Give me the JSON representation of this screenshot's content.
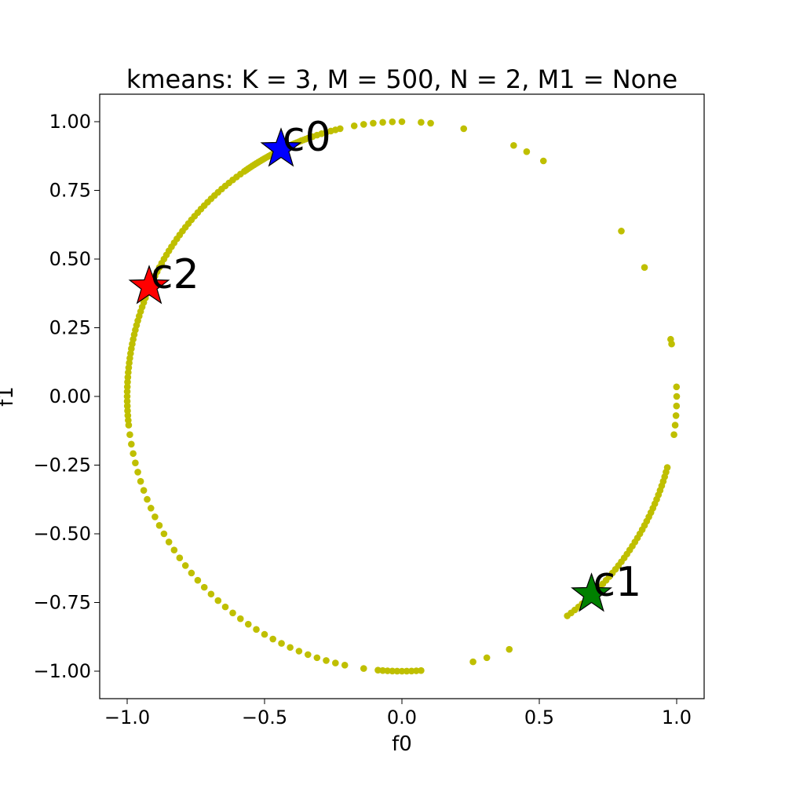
{
  "chart_data": {
    "type": "scatter",
    "title": "kmeans: K = 3, M = 500, N = 2, M1 = None",
    "xlabel": "f0",
    "ylabel": "f1",
    "xlim": [
      -1.1,
      1.1
    ],
    "ylim": [
      -1.1,
      1.1
    ],
    "grid": false,
    "x_ticks": [
      -1.0,
      -0.5,
      0.0,
      0.5,
      1.0
    ],
    "x_tick_labels": [
      "−1.0",
      "−0.5",
      "0.0",
      "0.5",
      "1.0"
    ],
    "y_ticks": [
      1.0,
      0.75,
      0.5,
      0.25,
      0.0,
      -0.25,
      -0.5,
      -0.75,
      -1.0
    ],
    "y_tick_labels": [
      "1.00",
      "0.75",
      "0.50",
      "0.25",
      "0.00",
      "−0.25",
      "−0.50",
      "−0.75",
      "−1.00"
    ],
    "point_color": "#bfbf00",
    "points_angles_deg": [
      103,
      104,
      105,
      106,
      107,
      108,
      109,
      110,
      110.5,
      111,
      111.5,
      112,
      112.5,
      113,
      113.5,
      114,
      114.5,
      115,
      115.5,
      116,
      116.5,
      117,
      117.5,
      118,
      118.5,
      119,
      119.5,
      120,
      120.5,
      121,
      121.5,
      122,
      122.5,
      123,
      123.5,
      124,
      124.5,
      125,
      126,
      127,
      128,
      129,
      130,
      131,
      132,
      133,
      134,
      135,
      136,
      137,
      138,
      139,
      140,
      141,
      142,
      143,
      144,
      145,
      146,
      147,
      148,
      149,
      150,
      151,
      152,
      153,
      154,
      155,
      156,
      157,
      158,
      159,
      160,
      161,
      162,
      163,
      164,
      165,
      166,
      167,
      168,
      169,
      170,
      171,
      172,
      173,
      174,
      175,
      176,
      177,
      178,
      179,
      180,
      181,
      182,
      183,
      184,
      185,
      186,
      188,
      190,
      192,
      194,
      196,
      198,
      200,
      202,
      204,
      206,
      208,
      210,
      212,
      214,
      216,
      218,
      220,
      222,
      224,
      226,
      228,
      230,
      232,
      234,
      236,
      238,
      240,
      242,
      244,
      246,
      248,
      250,
      252,
      254,
      256,
      258,
      262,
      265,
      266,
      267,
      268,
      269,
      270,
      271,
      272,
      273,
      274,
      285,
      288,
      293,
      307,
      308,
      309,
      310,
      311,
      312,
      313,
      314,
      315,
      316,
      317,
      318,
      319,
      320,
      321,
      322,
      323,
      324,
      325,
      326,
      327,
      328,
      329,
      330,
      331,
      332,
      333,
      334,
      335,
      336,
      337,
      338,
      339,
      340,
      341,
      342,
      343,
      344,
      345,
      352,
      354,
      356,
      358,
      360,
      2,
      11,
      12,
      28,
      37,
      59,
      63,
      66,
      77,
      84,
      86,
      90,
      92,
      94,
      96,
      98,
      100
    ],
    "centroids": [
      {
        "label": "c0",
        "x": -0.44,
        "y": 0.9,
        "color": "#0000ff"
      },
      {
        "label": "c1",
        "x": 0.69,
        "y": -0.72,
        "color": "#008000"
      },
      {
        "label": "c2",
        "x": -0.92,
        "y": 0.4,
        "color": "#ff0000"
      }
    ]
  }
}
